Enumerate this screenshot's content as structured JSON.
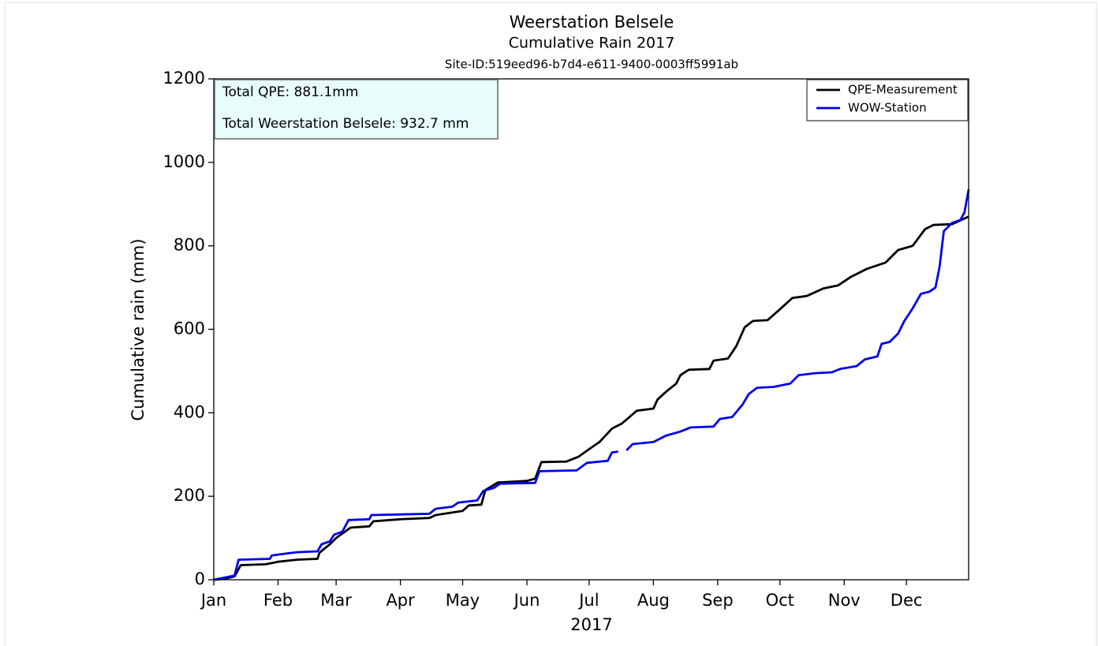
{
  "chart_data": {
    "type": "line",
    "title": "Weerstation Belsele",
    "subtitle": "Cumulative Rain 2017",
    "site_id": "Site-ID:519eed96-b7d4-e611-9400-0003ff5991ab",
    "x_label": "2017",
    "y_label": "Cumulative rain (mm)",
    "annotations": [
      "Total QPE: 881.1mm",
      "Total Weerstation Belsele: 932.7 mm"
    ],
    "xlim": [
      0,
      364
    ],
    "xticks": [
      {
        "value": 0,
        "label": "Jan"
      },
      {
        "value": 31,
        "label": "Feb"
      },
      {
        "value": 59,
        "label": "Mar"
      },
      {
        "value": 90,
        "label": "Apr"
      },
      {
        "value": 120,
        "label": "May"
      },
      {
        "value": 151,
        "label": "Jun"
      },
      {
        "value": 181,
        "label": "Jul"
      },
      {
        "value": 212,
        "label": "Aug"
      },
      {
        "value": 243,
        "label": "Sep"
      },
      {
        "value": 273,
        "label": "Oct"
      },
      {
        "value": 304,
        "label": "Nov"
      },
      {
        "value": 334,
        "label": "Dec"
      }
    ],
    "ylim": [
      0,
      1200
    ],
    "yticks": [
      0,
      200,
      400,
      600,
      800,
      1000,
      1200
    ],
    "legend": "upper right",
    "series": [
      {
        "name": "QPE-Measurement",
        "color": "#000000",
        "x": [
          0,
          5,
          10,
          13,
          25,
          31,
          40,
          50,
          51,
          56,
          59,
          66,
          75,
          77,
          90,
          104,
          107,
          120,
          123,
          129,
          131,
          137,
          151,
          155,
          158,
          170,
          176,
          181,
          186,
          192,
          197,
          204,
          212,
          214,
          218,
          223,
          225,
          229,
          239,
          241,
          248,
          252,
          256,
          260,
          267,
          273,
          279,
          286,
          294,
          301,
          307,
          315,
          324,
          330,
          337,
          343,
          347,
          356,
          364
        ],
        "values": [
          0,
          2,
          8,
          35,
          37,
          43,
          48,
          50,
          65,
          85,
          100,
          125,
          128,
          140,
          145,
          148,
          155,
          165,
          178,
          180,
          215,
          233,
          237,
          242,
          282,
          283,
          295,
          313,
          330,
          362,
          375,
          405,
          410,
          432,
          450,
          470,
          490,
          503,
          505,
          525,
          530,
          560,
          605,
          620,
          622,
          648,
          675,
          680,
          698,
          705,
          725,
          745,
          760,
          790,
          800,
          840,
          850,
          852,
          870
        ]
      },
      {
        "name": "WOW-Station",
        "color": "#0000ee",
        "x": [
          0,
          10,
          12,
          27,
          28,
          35,
          40,
          50,
          52,
          56,
          58,
          62,
          65,
          75,
          76,
          104,
          107,
          115,
          118,
          127,
          130,
          135,
          138,
          155,
          157,
          175,
          180,
          190,
          192,
          195,
          196,
          199,
          202,
          212,
          218,
          225,
          230,
          241,
          244,
          250,
          255,
          258,
          262,
          270,
          278,
          282,
          290,
          298,
          302,
          310,
          314,
          320,
          322,
          326,
          330,
          333,
          337,
          341,
          345,
          348,
          350,
          352,
          356,
          360,
          362,
          364
        ],
        "values": [
          0,
          10,
          48,
          50,
          58,
          63,
          66,
          68,
          85,
          92,
          108,
          115,
          143,
          145,
          155,
          158,
          170,
          175,
          185,
          190,
          213,
          220,
          230,
          232,
          260,
          262,
          280,
          285,
          305,
          307,
          null,
          310,
          325,
          330,
          345,
          355,
          365,
          367,
          385,
          390,
          420,
          445,
          460,
          462,
          470,
          490,
          495,
          497,
          505,
          512,
          528,
          535,
          565,
          570,
          590,
          620,
          650,
          685,
          690,
          700,
          750,
          835,
          855,
          862,
          880,
          935
        ]
      }
    ]
  }
}
